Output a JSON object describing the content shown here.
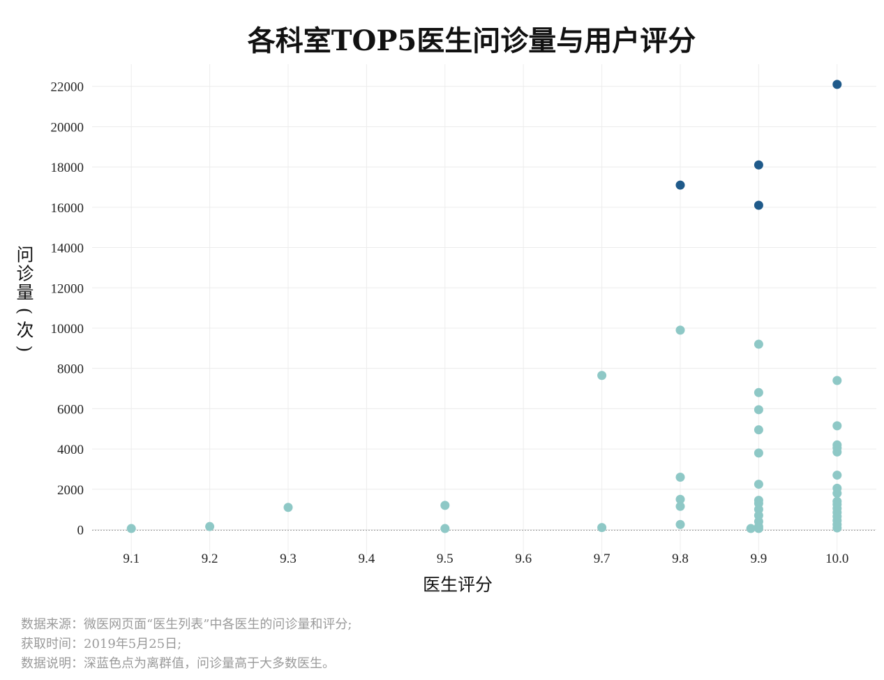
{
  "chart_data": {
    "type": "scatter",
    "title": "各科室TOP5医生问诊量与用户评分",
    "xlabel": "医生评分",
    "ylabel": "问诊量(次)",
    "x_ticks": [
      9.1,
      9.2,
      9.3,
      9.4,
      9.5,
      9.6,
      9.7,
      9.8,
      9.9,
      10.0
    ],
    "x_tick_labels": [
      "9.1",
      "9.2",
      "9.3",
      "9.4",
      "9.5",
      "9.6",
      "9.7",
      "9.8",
      "9.9",
      "10.0"
    ],
    "y_ticks": [
      0,
      2000,
      4000,
      6000,
      8000,
      10000,
      12000,
      14000,
      16000,
      18000,
      20000,
      22000
    ],
    "y_tick_labels": [
      "0",
      "2000",
      "4000",
      "6000",
      "8000",
      "10000",
      "12000",
      "14000",
      "16000",
      "18000",
      "20000",
      "22000"
    ],
    "xlim": [
      9.05,
      10.05
    ],
    "ylim": [
      -1300,
      23100
    ],
    "grid": true,
    "colors": {
      "normal": "#8ec8c6",
      "outlier": "#1f5a8a"
    },
    "series": [
      {
        "role": "normal",
        "points": [
          [
            9.1,
            50
          ],
          [
            9.2,
            150
          ],
          [
            9.3,
            1100
          ],
          [
            9.5,
            1200
          ],
          [
            9.5,
            50
          ],
          [
            9.7,
            7650
          ],
          [
            9.7,
            100
          ],
          [
            9.8,
            9900
          ],
          [
            9.8,
            2600
          ],
          [
            9.8,
            1500
          ],
          [
            9.8,
            1150
          ],
          [
            9.8,
            250
          ],
          [
            9.9,
            9200
          ],
          [
            9.9,
            6800
          ],
          [
            9.9,
            5950
          ],
          [
            9.9,
            4950
          ],
          [
            9.9,
            3800
          ],
          [
            9.9,
            2250
          ],
          [
            9.9,
            1450
          ],
          [
            9.9,
            1300
          ],
          [
            9.9,
            1000
          ],
          [
            9.9,
            700
          ],
          [
            9.9,
            400
          ],
          [
            9.9,
            150
          ],
          [
            9.9,
            50
          ],
          [
            9.89,
            50
          ],
          [
            10.0,
            7400
          ],
          [
            10.0,
            5150
          ],
          [
            10.0,
            4200
          ],
          [
            10.0,
            4050
          ],
          [
            10.0,
            3850
          ],
          [
            10.0,
            2700
          ],
          [
            10.0,
            2050
          ],
          [
            10.0,
            1800
          ],
          [
            10.0,
            1400
          ],
          [
            10.0,
            1250
          ],
          [
            10.0,
            1050
          ],
          [
            10.0,
            850
          ],
          [
            10.0,
            650
          ],
          [
            10.0,
            450
          ],
          [
            10.0,
            250
          ],
          [
            10.0,
            80
          ]
        ]
      },
      {
        "role": "outlier",
        "points": [
          [
            9.8,
            17100
          ],
          [
            9.9,
            18100
          ],
          [
            9.9,
            16100
          ],
          [
            10.0,
            22100
          ]
        ]
      }
    ]
  },
  "notes": [
    "数据来源：微医网页面“医生列表”中各医生的问诊量和评分;",
    "获取时间：2019年5月25日;",
    "数据说明：深蓝色点为离群值，问诊量高于大多数医生。"
  ]
}
